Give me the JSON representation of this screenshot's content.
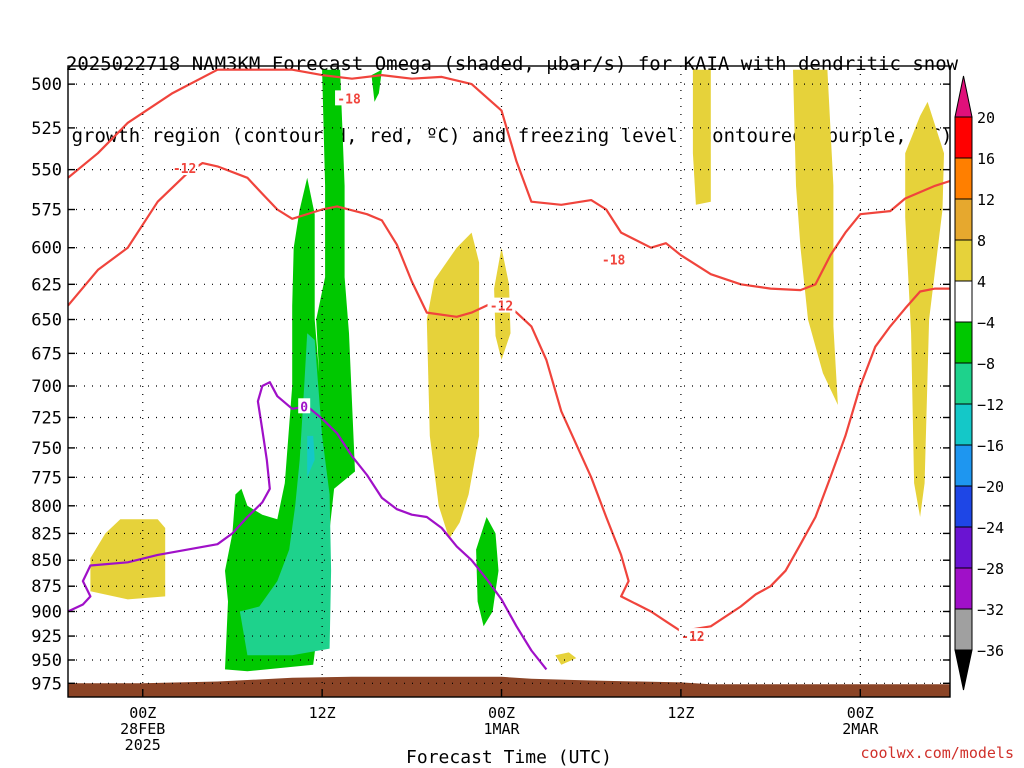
{
  "title_lines": [
    "2025022718 NAM3KM Forecast Omega (shaded, μbar/s) for KAIA with dendritic snow",
    "growth region (contoured, red, ºC) and freezing level (contoured, purple, ºC)"
  ],
  "credit": "coolwx.com/models",
  "chart_data": {
    "type": "heatmap",
    "title": "2025022718 NAM3KM Forecast Omega (shaded, μbar/s) for KAIA with dendritic snow growth region (contoured, red, ºC) and freezing level (contoured, purple, ºC)",
    "xlabel": "Forecast Time (UTC)",
    "ylabel": "",
    "xlim": [
      -5,
      54
    ],
    "ylim": [
      490,
      990
    ],
    "y_scale": "log-pressure (inverted)",
    "grid": true,
    "x_ticks": [
      {
        "hour": 0,
        "lines": [
          "00Z",
          "28FEB",
          "2025"
        ]
      },
      {
        "hour": 12,
        "lines": [
          "12Z"
        ]
      },
      {
        "hour": 24,
        "lines": [
          "00Z",
          "1MAR"
        ]
      },
      {
        "hour": 36,
        "lines": [
          "12Z"
        ]
      },
      {
        "hour": 48,
        "lines": [
          "00Z",
          "2MAR"
        ]
      }
    ],
    "y_ticks": [
      500,
      525,
      550,
      575,
      600,
      625,
      650,
      675,
      700,
      725,
      750,
      775,
      800,
      825,
      850,
      875,
      900,
      925,
      950,
      975
    ],
    "colorbar": {
      "labels": [
        "20",
        "16",
        "12",
        "8",
        "4",
        "−4",
        "−8",
        "−12",
        "−16",
        "−20",
        "−24",
        "−28",
        "−32",
        "−36"
      ],
      "colors": [
        "#ff0000",
        "#ff7f00",
        "#e6a82e",
        "#e6d23a",
        "#ffffff",
        "#00c800",
        "#1ed28c",
        "#14c8c8",
        "#1e96f0",
        "#1e46e6",
        "#6a14d2",
        "#a010c8",
        "#a0a0a0"
      ],
      "top_triangle": "#e0107a",
      "bottom_triangle": "#000000"
    },
    "series": [
      {
        "name": "-18",
        "color": "#f0443c",
        "points": [
          [
            -5,
            555
          ],
          [
            -3,
            540
          ],
          [
            -1,
            522
          ],
          [
            2,
            505
          ],
          [
            5,
            492
          ],
          [
            10,
            492
          ],
          [
            12,
            495
          ],
          [
            14,
            497
          ],
          [
            16,
            495
          ],
          [
            18,
            497
          ],
          [
            20,
            496
          ],
          [
            22,
            500
          ],
          [
            24,
            515
          ],
          [
            25,
            545
          ],
          [
            26,
            570
          ],
          [
            28,
            572
          ],
          [
            30,
            569
          ],
          [
            31,
            575
          ],
          [
            32,
            590
          ],
          [
            34,
            600
          ],
          [
            35,
            597
          ],
          [
            36,
            605
          ],
          [
            38,
            618
          ],
          [
            40,
            625
          ],
          [
            42,
            628
          ],
          [
            44,
            629
          ],
          [
            45,
            625
          ],
          [
            46,
            605
          ],
          [
            47,
            590
          ],
          [
            48,
            578
          ],
          [
            50,
            576
          ],
          [
            51,
            568
          ],
          [
            53,
            560
          ],
          [
            54,
            557
          ]
        ]
      },
      {
        "name": "-12",
        "color": "#f0443c",
        "points": [
          [
            -5,
            640
          ],
          [
            -3,
            615
          ],
          [
            -1,
            600
          ],
          [
            1,
            570
          ],
          [
            3,
            552
          ],
          [
            4,
            546
          ],
          [
            5,
            548
          ],
          [
            7,
            555
          ],
          [
            8,
            565
          ],
          [
            9,
            575
          ],
          [
            10,
            581
          ],
          [
            12,
            575
          ],
          [
            13,
            573
          ],
          [
            15,
            578
          ],
          [
            16,
            582
          ],
          [
            17,
            598
          ],
          [
            18,
            623
          ],
          [
            19,
            645
          ],
          [
            21,
            648
          ],
          [
            22,
            645
          ],
          [
            24,
            635
          ],
          [
            26,
            655
          ],
          [
            27,
            680
          ],
          [
            28,
            720
          ],
          [
            30,
            775
          ],
          [
            31,
            810
          ],
          [
            32,
            845
          ],
          [
            32.5,
            870
          ],
          [
            32,
            885
          ],
          [
            34,
            900
          ],
          [
            35,
            910
          ],
          [
            36,
            920
          ],
          [
            38,
            915
          ],
          [
            40,
            895
          ],
          [
            41,
            883
          ],
          [
            42,
            875
          ],
          [
            43,
            860
          ],
          [
            44,
            835
          ],
          [
            45,
            810
          ],
          [
            46,
            775
          ],
          [
            47,
            740
          ],
          [
            48,
            700
          ],
          [
            49,
            670
          ],
          [
            50,
            655
          ],
          [
            51,
            642
          ],
          [
            52,
            630
          ],
          [
            53,
            628
          ],
          [
            54,
            628
          ]
        ]
      },
      {
        "name": "0",
        "color": "#a010c8",
        "points": [
          [
            -5,
            900
          ],
          [
            -4,
            893
          ],
          [
            -3.5,
            885
          ],
          [
            -4,
            870
          ],
          [
            -3.5,
            855
          ],
          [
            -1,
            852
          ],
          [
            1,
            845
          ],
          [
            3,
            840
          ],
          [
            5,
            835
          ],
          [
            6,
            825
          ],
          [
            7,
            810
          ],
          [
            8,
            797
          ],
          [
            8.5,
            785
          ],
          [
            8.3,
            760
          ],
          [
            8,
            735
          ],
          [
            7.7,
            712
          ],
          [
            8,
            700
          ],
          [
            8.5,
            697
          ],
          [
            9,
            708
          ],
          [
            10,
            718
          ],
          [
            11,
            716
          ],
          [
            12,
            726
          ],
          [
            13,
            738
          ],
          [
            14,
            757
          ],
          [
            15,
            773
          ],
          [
            16,
            793
          ],
          [
            17,
            803
          ],
          [
            18,
            808
          ],
          [
            19,
            810
          ],
          [
            20,
            820
          ],
          [
            21,
            837
          ],
          [
            22,
            850
          ],
          [
            23,
            868
          ],
          [
            24,
            888
          ],
          [
            25,
            915
          ],
          [
            26,
            940
          ],
          [
            27,
            960
          ]
        ]
      }
    ],
    "contour_labels": [
      {
        "text": "-18",
        "hour": 13.8,
        "p": 508
      },
      {
        "text": "-18",
        "hour": 31.5,
        "p": 608
      },
      {
        "text": "-12",
        "hour": 2.8,
        "p": 549
      },
      {
        "text": "-12",
        "hour": 24.0,
        "p": 640
      },
      {
        "text": "-12",
        "hour": 36.8,
        "p": 925
      },
      {
        "text": "0",
        "hour": 10.8,
        "p": 716
      }
    ],
    "omega_regions": [
      {
        "level": "4 to 8",
        "color": "#e6d23a",
        "points": [
          [
            -3.5,
            848
          ],
          [
            -2.5,
            825
          ],
          [
            -1.5,
            812
          ],
          [
            1,
            812
          ],
          [
            1.5,
            820
          ],
          [
            1.5,
            885
          ],
          [
            -1,
            888
          ],
          [
            -3.5,
            880
          ]
        ]
      },
      {
        "level": "4 to 8",
        "color": "#e6d23a",
        "points": [
          [
            19,
            650
          ],
          [
            19.5,
            622
          ],
          [
            21,
            600
          ],
          [
            22,
            590
          ],
          [
            22.5,
            610
          ],
          [
            22.5,
            740
          ],
          [
            21.8,
            790
          ],
          [
            21.2,
            815
          ],
          [
            20.5,
            830
          ],
          [
            19.8,
            800
          ],
          [
            19.2,
            740
          ]
        ]
      },
      {
        "level": "4 to 8",
        "color": "#e6d23a",
        "points": [
          [
            23.5,
            628
          ],
          [
            24,
            600
          ],
          [
            24.5,
            625
          ],
          [
            24.6,
            660
          ],
          [
            24,
            680
          ],
          [
            23.6,
            662
          ]
        ]
      },
      {
        "level": "4 to 8",
        "color": "#e6d23a",
        "points": [
          [
            36.8,
            492
          ],
          [
            38,
            492
          ],
          [
            38,
            570
          ],
          [
            37,
            572
          ],
          [
            36.8,
            540
          ]
        ]
      },
      {
        "level": "4 to 8",
        "color": "#e6d23a",
        "points": [
          [
            43.5,
            492
          ],
          [
            45.8,
            492
          ],
          [
            46.2,
            560
          ],
          [
            46.2,
            655
          ],
          [
            46.5,
            715
          ],
          [
            45.5,
            690
          ],
          [
            44.5,
            650
          ],
          [
            44,
            600
          ],
          [
            43.7,
            560
          ]
        ]
      },
      {
        "level": "4 to 8",
        "color": "#e6d23a",
        "points": [
          [
            51,
            540
          ],
          [
            52,
            518
          ],
          [
            52.5,
            510
          ],
          [
            53.6,
            540
          ],
          [
            53.5,
            575
          ],
          [
            52.6,
            650
          ],
          [
            52.3,
            780
          ],
          [
            52,
            810
          ],
          [
            51.6,
            780
          ],
          [
            51.4,
            660
          ],
          [
            51,
            580
          ]
        ]
      },
      {
        "level": "4 to 8",
        "color": "#e6d23a",
        "points": [
          [
            27.6,
            945
          ],
          [
            28.5,
            942
          ],
          [
            29,
            948
          ],
          [
            28,
            955
          ]
        ]
      },
      {
        "level": "-4 to -8",
        "color": "#00c800",
        "points": [
          [
            12,
            492
          ],
          [
            13.2,
            492
          ],
          [
            13.5,
            560
          ],
          [
            13.5,
            620
          ],
          [
            13.8,
            660
          ],
          [
            14.2,
            770
          ],
          [
            12.8,
            785
          ],
          [
            12.2,
            860
          ],
          [
            11.4,
            955
          ],
          [
            7,
            962
          ],
          [
            5.5,
            960
          ],
          [
            5.7,
            890
          ],
          [
            5.5,
            860
          ],
          [
            6,
            825
          ],
          [
            6.2,
            790
          ],
          [
            6.6,
            785
          ],
          [
            7,
            800
          ],
          [
            8,
            808
          ],
          [
            9,
            812
          ],
          [
            9.5,
            780
          ],
          [
            10,
            700
          ],
          [
            10,
            640
          ],
          [
            10.1,
            600
          ],
          [
            10.5,
            575
          ],
          [
            11,
            555
          ],
          [
            11.5,
            578
          ],
          [
            11.5,
            650
          ],
          [
            11.8,
            690
          ],
          [
            11.6,
            650
          ],
          [
            12.2,
            620
          ],
          [
            12.2,
            560
          ]
        ]
      },
      {
        "level": "-4 to -8",
        "color": "#00c800",
        "points": [
          [
            15.3,
            495
          ],
          [
            16,
            492
          ],
          [
            15.8,
            505
          ],
          [
            15.5,
            510
          ]
        ]
      },
      {
        "level": "-4 to -8",
        "color": "#00c800",
        "points": [
          [
            22.3,
            840
          ],
          [
            23,
            810
          ],
          [
            23.6,
            825
          ],
          [
            23.8,
            860
          ],
          [
            23.4,
            900
          ],
          [
            22.8,
            915
          ],
          [
            22.4,
            890
          ]
        ]
      },
      {
        "level": "-8 to -12",
        "color": "#1ed28c",
        "points": [
          [
            11,
            660
          ],
          [
            11.5,
            665
          ],
          [
            12,
            740
          ],
          [
            12.5,
            790
          ],
          [
            12.6,
            860
          ],
          [
            12.5,
            938
          ],
          [
            10,
            945
          ],
          [
            7,
            945
          ],
          [
            6.5,
            900
          ],
          [
            7.8,
            895
          ],
          [
            9,
            870
          ],
          [
            9.8,
            840
          ],
          [
            10.2,
            800
          ],
          [
            10.5,
            760
          ],
          [
            10.8,
            700
          ]
        ]
      },
      {
        "level": "-12 to -16",
        "color": "#14c8c8",
        "points": [
          [
            11,
            740
          ],
          [
            11.4,
            740
          ],
          [
            11.5,
            760
          ],
          [
            11,
            775
          ]
        ]
      }
    ],
    "terrain": {
      "color": "#8b4426",
      "points": [
        [
          -5,
          975
        ],
        [
          0,
          975
        ],
        [
          5,
          973
        ],
        [
          10,
          969
        ],
        [
          14,
          968
        ],
        [
          20,
          968
        ],
        [
          24,
          968
        ],
        [
          26,
          970
        ],
        [
          30,
          972
        ],
        [
          36,
          974
        ],
        [
          38,
          976
        ],
        [
          54,
          976
        ]
      ]
    }
  }
}
